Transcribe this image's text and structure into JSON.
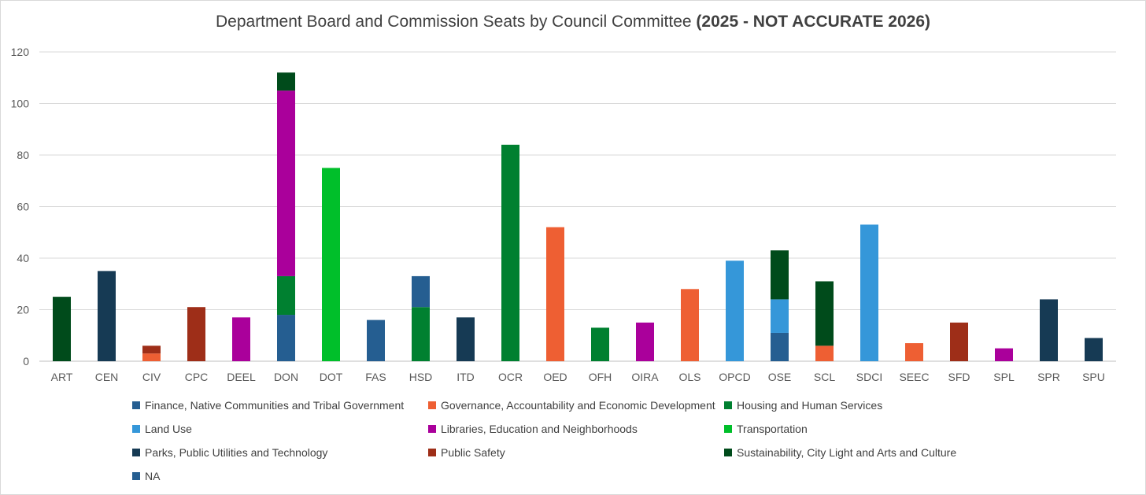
{
  "chart_data": {
    "type": "bar",
    "stacked": true,
    "title": "Department Board and Commission Seats by Council Committee ",
    "title_bold": "(2025 - NOT ACCURATE 2026)",
    "xlabel": "",
    "ylabel": "",
    "ylim": [
      0,
      120
    ],
    "yticks": [
      0,
      20,
      40,
      60,
      80,
      100,
      120
    ],
    "grid": true,
    "legend_position": "bottom",
    "categories": [
      "ART",
      "CEN",
      "CIV",
      "CPC",
      "DEEL",
      "DON",
      "DOT",
      "FAS",
      "HSD",
      "ITD",
      "OCR",
      "OED",
      "OFH",
      "OIRA",
      "OLS",
      "OPCD",
      "OSE",
      "SCL",
      "SDCI",
      "SEEC",
      "SFD",
      "SPL",
      "SPR",
      "SPU"
    ],
    "series": [
      {
        "name": "Finance, Native Communities and Tribal Government",
        "color": "#255e91",
        "values": [
          0,
          0,
          0,
          0,
          0,
          18,
          0,
          16,
          0,
          0,
          0,
          0,
          0,
          0,
          0,
          0,
          11,
          0,
          0,
          0,
          0,
          0,
          0,
          0
        ]
      },
      {
        "name": "Governance, Accountability and Economic Development",
        "color": "#ee5f33",
        "values": [
          0,
          0,
          3,
          0,
          0,
          0,
          0,
          0,
          0,
          0,
          0,
          52,
          0,
          0,
          28,
          0,
          0,
          6,
          0,
          7,
          0,
          0,
          0,
          0
        ]
      },
      {
        "name": "Housing and Human Services",
        "color": "#008030",
        "values": [
          0,
          0,
          0,
          0,
          0,
          15,
          0,
          0,
          21,
          0,
          84,
          0,
          13,
          0,
          0,
          0,
          0,
          0,
          0,
          0,
          0,
          0,
          0,
          0
        ]
      },
      {
        "name": "Land Use",
        "color": "#3597d9",
        "values": [
          0,
          0,
          0,
          0,
          0,
          0,
          0,
          0,
          0,
          0,
          0,
          0,
          0,
          0,
          0,
          39,
          13,
          0,
          53,
          0,
          0,
          0,
          0,
          0
        ]
      },
      {
        "name": "Libraries, Education and Neighborhoods",
        "color": "#aa009b",
        "values": [
          0,
          0,
          0,
          0,
          17,
          72,
          0,
          0,
          0,
          0,
          0,
          0,
          0,
          15,
          0,
          0,
          0,
          0,
          0,
          0,
          0,
          5,
          0,
          0
        ]
      },
      {
        "name": "Transportation",
        "color": "#00bf2a",
        "values": [
          0,
          0,
          0,
          0,
          0,
          0,
          75,
          0,
          0,
          0,
          0,
          0,
          0,
          0,
          0,
          0,
          0,
          0,
          0,
          0,
          0,
          0,
          0,
          0
        ]
      },
      {
        "name": "Parks, Public Utilities and Technology",
        "color": "#163a54",
        "values": [
          0,
          35,
          0,
          0,
          0,
          0,
          0,
          0,
          0,
          17,
          0,
          0,
          0,
          0,
          0,
          0,
          0,
          0,
          0,
          0,
          0,
          0,
          24,
          9
        ]
      },
      {
        "name": "Public Safety",
        "color": "#9e2e18",
        "values": [
          0,
          0,
          3,
          21,
          0,
          0,
          0,
          0,
          0,
          0,
          0,
          0,
          0,
          0,
          0,
          0,
          0,
          0,
          0,
          0,
          15,
          0,
          0,
          0
        ]
      },
      {
        "name": "Sustainability, City Light and Arts and Culture",
        "color": "#004b1b",
        "values": [
          25,
          0,
          0,
          0,
          0,
          7,
          0,
          0,
          0,
          0,
          0,
          0,
          0,
          0,
          0,
          0,
          19,
          25,
          0,
          0,
          0,
          0,
          0,
          0
        ]
      },
      {
        "name": "NA",
        "color": "#255e91",
        "values": [
          0,
          0,
          0,
          0,
          0,
          0,
          0,
          0,
          12,
          0,
          0,
          0,
          0,
          0,
          0,
          0,
          0,
          0,
          0,
          0,
          0,
          0,
          0,
          0
        ]
      }
    ]
  }
}
